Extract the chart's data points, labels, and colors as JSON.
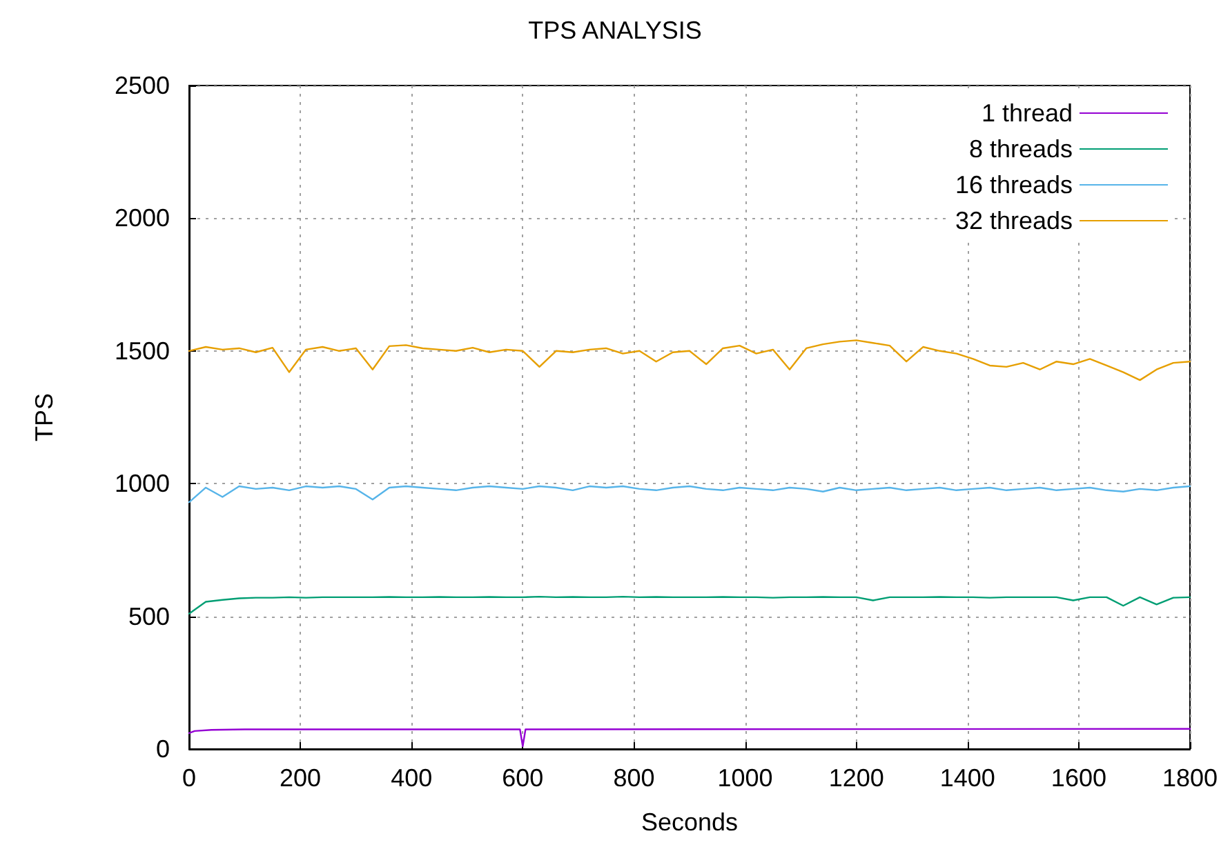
{
  "chart_data": {
    "type": "line",
    "title": "TPS ANALYSIS",
    "xlabel": "Seconds",
    "ylabel": "TPS",
    "x": [
      0,
      30,
      60,
      90,
      120,
      150,
      180,
      210,
      240,
      270,
      300,
      330,
      360,
      390,
      420,
      450,
      480,
      510,
      540,
      570,
      600,
      630,
      660,
      690,
      720,
      750,
      780,
      810,
      840,
      870,
      900,
      930,
      960,
      990,
      1020,
      1050,
      1080,
      1110,
      1140,
      1170,
      1200,
      1230,
      1260,
      1290,
      1320,
      1350,
      1380,
      1410,
      1440,
      1470,
      1500,
      1530,
      1560,
      1590,
      1620,
      1650,
      1680,
      1710,
      1740,
      1770,
      1800
    ],
    "xlim": [
      0,
      1800
    ],
    "xticks": [
      0,
      200,
      400,
      600,
      800,
      1000,
      1200,
      1400,
      1600,
      1800
    ],
    "ylim": [
      0,
      2500
    ],
    "yticks": [
      0,
      500,
      1000,
      1500,
      2000,
      2500
    ],
    "grid": true,
    "legend": "top right",
    "marker": "none",
    "line_style": "solid",
    "series": [
      {
        "name": "1 thread",
        "color": "#9400d3",
        "x": [
          0,
          10,
          40,
          100,
          595,
          600,
          605,
          1800
        ],
        "values": [
          60,
          68,
          72,
          74,
          74,
          10,
          74,
          76
        ]
      },
      {
        "name": "8 threads",
        "color": "#009e73",
        "values": [
          510,
          555,
          562,
          568,
          570,
          570,
          572,
          570,
          572,
          572,
          572,
          572,
          573,
          572,
          572,
          573,
          572,
          572,
          573,
          572,
          572,
          574,
          572,
          573,
          572,
          572,
          574,
          572,
          573,
          572,
          572,
          572,
          573,
          572,
          572,
          570,
          572,
          572,
          573,
          572,
          572,
          560,
          572,
          572,
          572,
          573,
          572,
          572,
          570,
          572,
          572,
          572,
          572,
          560,
          572,
          572,
          540,
          572,
          545,
          570,
          572
        ]
      },
      {
        "name": "16 threads",
        "color": "#56b4e9",
        "values": [
          930,
          985,
          950,
          990,
          980,
          985,
          975,
          990,
          985,
          990,
          980,
          940,
          985,
          990,
          985,
          980,
          975,
          985,
          990,
          985,
          980,
          990,
          985,
          975,
          990,
          985,
          990,
          980,
          975,
          985,
          990,
          980,
          975,
          985,
          980,
          975,
          985,
          980,
          970,
          985,
          975,
          980,
          985,
          975,
          980,
          985,
          975,
          980,
          985,
          975,
          980,
          985,
          975,
          980,
          985,
          975,
          970,
          980,
          975,
          985,
          990
        ]
      },
      {
        "name": "32 threads",
        "color": "#e69f00",
        "values": [
          1500,
          1515,
          1505,
          1510,
          1495,
          1512,
          1420,
          1505,
          1515,
          1500,
          1510,
          1430,
          1518,
          1522,
          1510,
          1505,
          1500,
          1512,
          1495,
          1505,
          1500,
          1440,
          1500,
          1495,
          1505,
          1510,
          1490,
          1500,
          1460,
          1495,
          1500,
          1450,
          1510,
          1520,
          1490,
          1505,
          1430,
          1510,
          1525,
          1535,
          1540,
          1530,
          1520,
          1460,
          1515,
          1500,
          1490,
          1470,
          1445,
          1440,
          1455,
          1430,
          1460,
          1450,
          1470,
          1445,
          1420,
          1390,
          1430,
          1455,
          1460
        ]
      }
    ]
  }
}
